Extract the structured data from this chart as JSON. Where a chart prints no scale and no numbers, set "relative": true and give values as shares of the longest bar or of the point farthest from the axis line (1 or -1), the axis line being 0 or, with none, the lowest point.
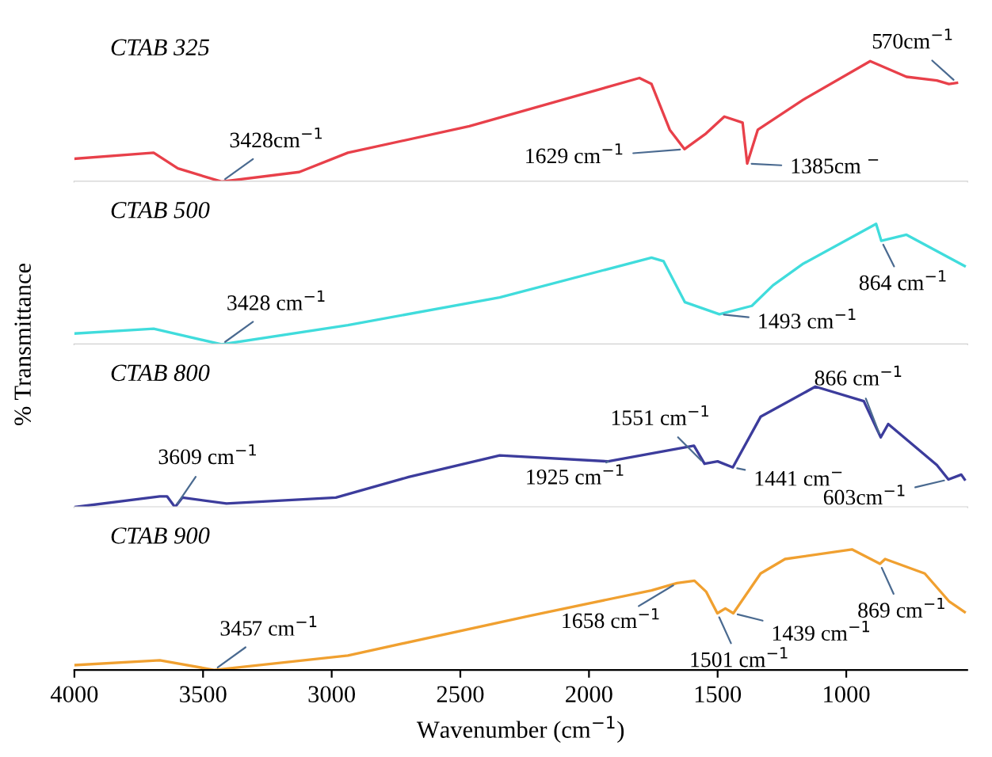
{
  "chart_data": [
    {
      "type": "line",
      "relative": true,
      "title": "CTAB 325",
      "xlim": [
        4000,
        530
      ],
      "tick_labels": false,
      "grid": false,
      "legend": false,
      "x": [
        4000,
        3692,
        3598,
        3428,
        3126,
        2937,
        2465,
        1804,
        1757,
        1686,
        1629,
        1545,
        1474,
        1403,
        1385,
        1344,
        1167,
        907,
        766,
        648,
        601,
        570
      ],
      "series": [
        {
          "color": "#e8404a",
          "values": [
            0.19,
            0.24,
            0.11,
            0,
            0.08,
            0.24,
            0.46,
            0.86,
            0.81,
            0.43,
            0.27,
            0.4,
            0.54,
            0.49,
            0.15,
            0.43,
            0.68,
            1,
            0.87,
            0.84,
            0.81,
            0.82
          ]
        }
      ],
      "annotations": [
        {
          "text": "3428cm$^{−1}$",
          "x": 3428,
          "y": 0
        },
        {
          "text": "1629 cm$^{−1}$",
          "x": 1629,
          "y": 0.27
        },
        {
          "text": "1385cm $^{−}$",
          "x": 1385,
          "y": 0.15
        },
        {
          "text": "570cm$^{−1}$",
          "x": 570,
          "y": 0.82
        }
      ]
    },
    {
      "type": "line",
      "relative": true,
      "title": "CTAB 500",
      "ylabel": "% Transmittance",
      "xlim": [
        4000,
        530
      ],
      "tick_labels": false,
      "grid": false,
      "legend": false,
      "x": [
        4000,
        3692,
        3428,
        2937,
        2347,
        1757,
        1710,
        1627,
        1493,
        1367,
        1285,
        1167,
        884,
        864,
        766,
        540
      ],
      "series": [
        {
          "color": "#40dcdc",
          "values": [
            0.09,
            0.13,
            0,
            0.16,
            0.39,
            0.72,
            0.69,
            0.35,
            0.25,
            0.32,
            0.49,
            0.67,
            1,
            0.86,
            0.91,
            0.65
          ]
        }
      ],
      "annotations": [
        {
          "text": "3428 cm$^{−1}$",
          "x": 3428,
          "y": 0
        },
        {
          "text": "1493 cm$^{−1}$",
          "x": 1493,
          "y": 0.25
        },
        {
          "text": "864 cm$^{−1}$",
          "x": 864,
          "y": 0.86
        }
      ]
    },
    {
      "type": "line",
      "relative": true,
      "title": "CTAB 800",
      "xlim": [
        4000,
        530
      ],
      "tick_labels": false,
      "grid": false,
      "legend": false,
      "x": [
        4000,
        3668,
        3640,
        3609,
        3580,
        3409,
        2984,
        2701,
        2347,
        1925,
        1592,
        1551,
        1500,
        1441,
        1333,
        1120,
        932,
        866,
        837,
        648,
        603,
        553,
        540
      ],
      "series": [
        {
          "color": "#3c3c9c",
          "values": [
            0,
            0.09,
            0.09,
            0,
            0.08,
            0.03,
            0.08,
            0.25,
            0.43,
            0.38,
            0.51,
            0.36,
            0.38,
            0.33,
            0.75,
            1,
            0.88,
            0.58,
            0.69,
            0.35,
            0.23,
            0.27,
            0.23
          ]
        }
      ],
      "annotations": [
        {
          "text": "3609 cm$^{−1}$",
          "x": 3609,
          "y": 0
        },
        {
          "text": "1925 cm$^{−1}$",
          "x": 1925,
          "y": 0.38
        },
        {
          "text": "1551 cm$^{−1}$",
          "x": 1551,
          "y": 0.36
        },
        {
          "text": "1441 cm$^{−}$",
          "x": 1441,
          "y": 0.33
        },
        {
          "text": "866 cm$^{−1}$",
          "x": 866,
          "y": 0.58
        },
        {
          "text": "603cm$^{−1}$",
          "x": 603,
          "y": 0.23
        }
      ]
    },
    {
      "type": "line",
      "relative": true,
      "title": "CTAB 900",
      "xlabel": "Wavenumber (cm$^{−1}$)",
      "xlim": [
        4000,
        530
      ],
      "xticks": [
        4000,
        3500,
        3000,
        2500,
        2000,
        1500,
        1000
      ],
      "tick_labels": "x",
      "grid": false,
      "legend": false,
      "x": [
        4000,
        3668,
        3457,
        2937,
        2229,
        1757,
        1658,
        1590,
        1545,
        1501,
        1470,
        1439,
        1333,
        1238,
        978,
        869,
        849,
        695,
        601,
        540
      ],
      "series": [
        {
          "color": "#f0a030",
          "values": [
            0.04,
            0.08,
            0,
            0.12,
            0.45,
            0.66,
            0.72,
            0.74,
            0.65,
            0.47,
            0.51,
            0.47,
            0.8,
            0.92,
            1,
            0.88,
            0.92,
            0.8,
            0.57,
            0.48
          ]
        }
      ],
      "annotations": [
        {
          "text": "3457 cm$^{−1}$",
          "x": 3457,
          "y": 0
        },
        {
          "text": "1658 cm$^{−1}$",
          "x": 1658,
          "y": 0.72
        },
        {
          "text": "1501 cm$^{−1}$",
          "x": 1501,
          "y": 0.47
        },
        {
          "text": "1439 cm$^{−1}$",
          "x": 1439,
          "y": 0.47
        },
        {
          "text": "869 cm$^{−1}$",
          "x": 869,
          "y": 0.88
        }
      ]
    }
  ]
}
